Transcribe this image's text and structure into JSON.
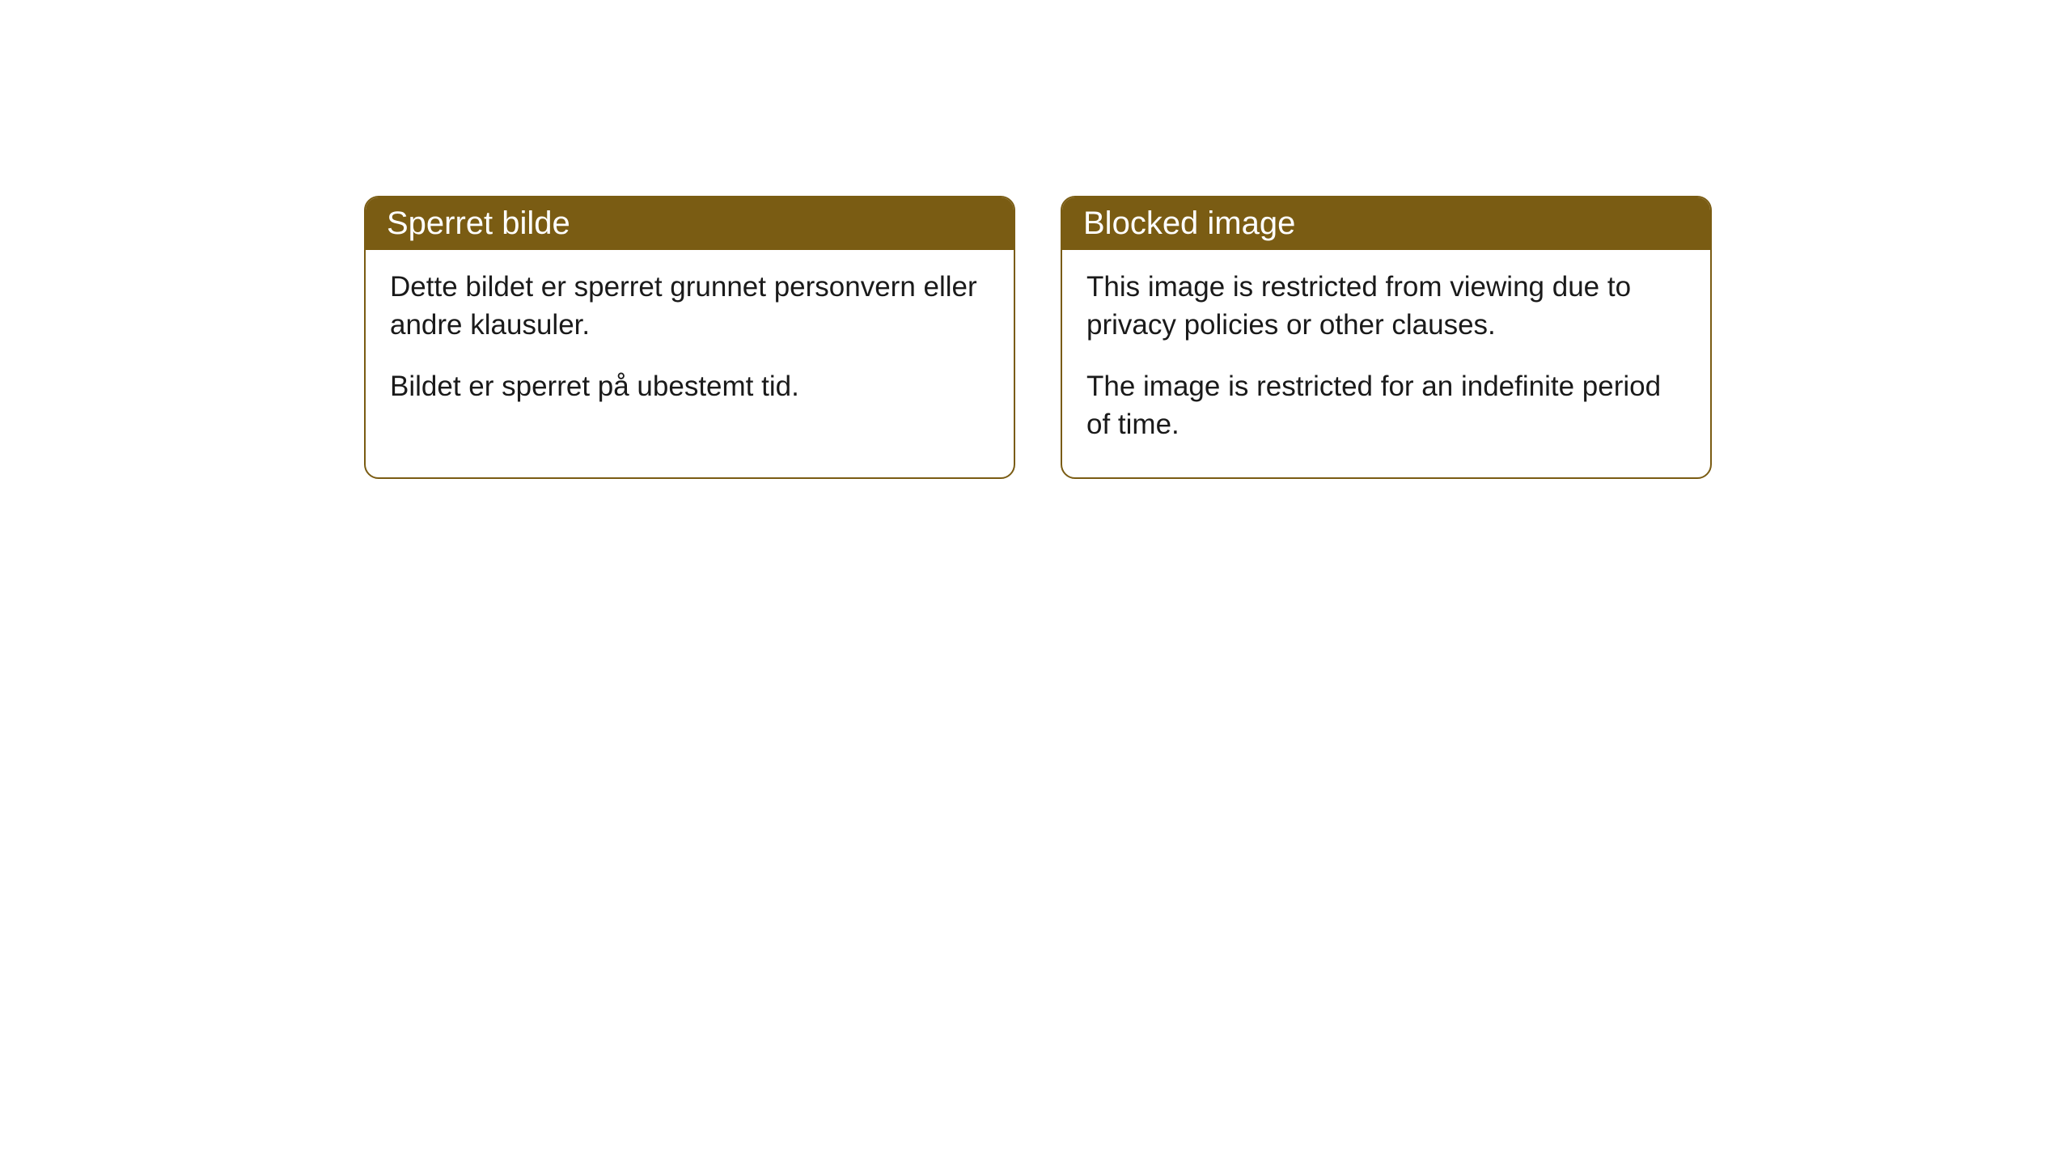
{
  "cards": [
    {
      "title": "Sperret bilde",
      "paragraph1": "Dette bildet er sperret grunnet personvern eller andre klausuler.",
      "paragraph2": "Bildet er sperret på ubestemt tid."
    },
    {
      "title": "Blocked image",
      "paragraph1": "This image is restricted from viewing due to privacy policies or other clauses.",
      "paragraph2": "The image is restricted for an indefinite period of time."
    }
  ],
  "style": {
    "header_background": "#7a5c13",
    "header_text_color": "#ffffff",
    "border_color": "#7a5c13",
    "body_background": "#ffffff",
    "body_text_color": "#1a1a1a",
    "border_radius": 18,
    "title_fontsize": 40,
    "body_fontsize": 35
  }
}
